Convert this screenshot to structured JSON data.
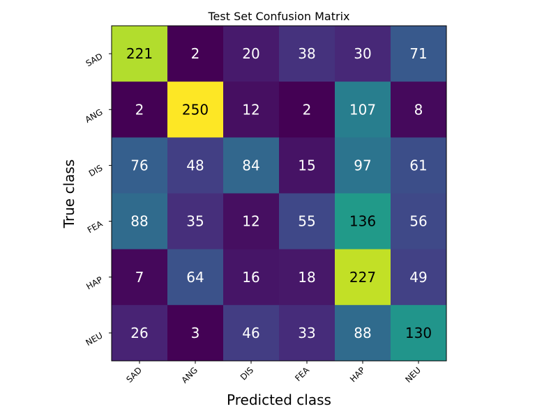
{
  "chart_data": {
    "type": "heatmap",
    "title": "Test Set Confusion Matrix",
    "xlabel": "Predicted class",
    "ylabel": "True class",
    "x_categories": [
      "SAD",
      "ANG",
      "DIS",
      "FEA",
      "HAP",
      "NEU"
    ],
    "y_categories": [
      "SAD",
      "ANG",
      "DIS",
      "FEA",
      "HAP",
      "NEU"
    ],
    "values": [
      [
        221,
        2,
        20,
        38,
        30,
        71
      ],
      [
        2,
        250,
        12,
        2,
        107,
        8
      ],
      [
        76,
        48,
        84,
        15,
        97,
        61
      ],
      [
        88,
        35,
        12,
        55,
        136,
        56
      ],
      [
        7,
        64,
        16,
        18,
        227,
        49
      ],
      [
        26,
        3,
        46,
        33,
        88,
        130
      ]
    ],
    "colormap": "viridis",
    "value_range": [
      2,
      250
    ],
    "grid": false
  }
}
